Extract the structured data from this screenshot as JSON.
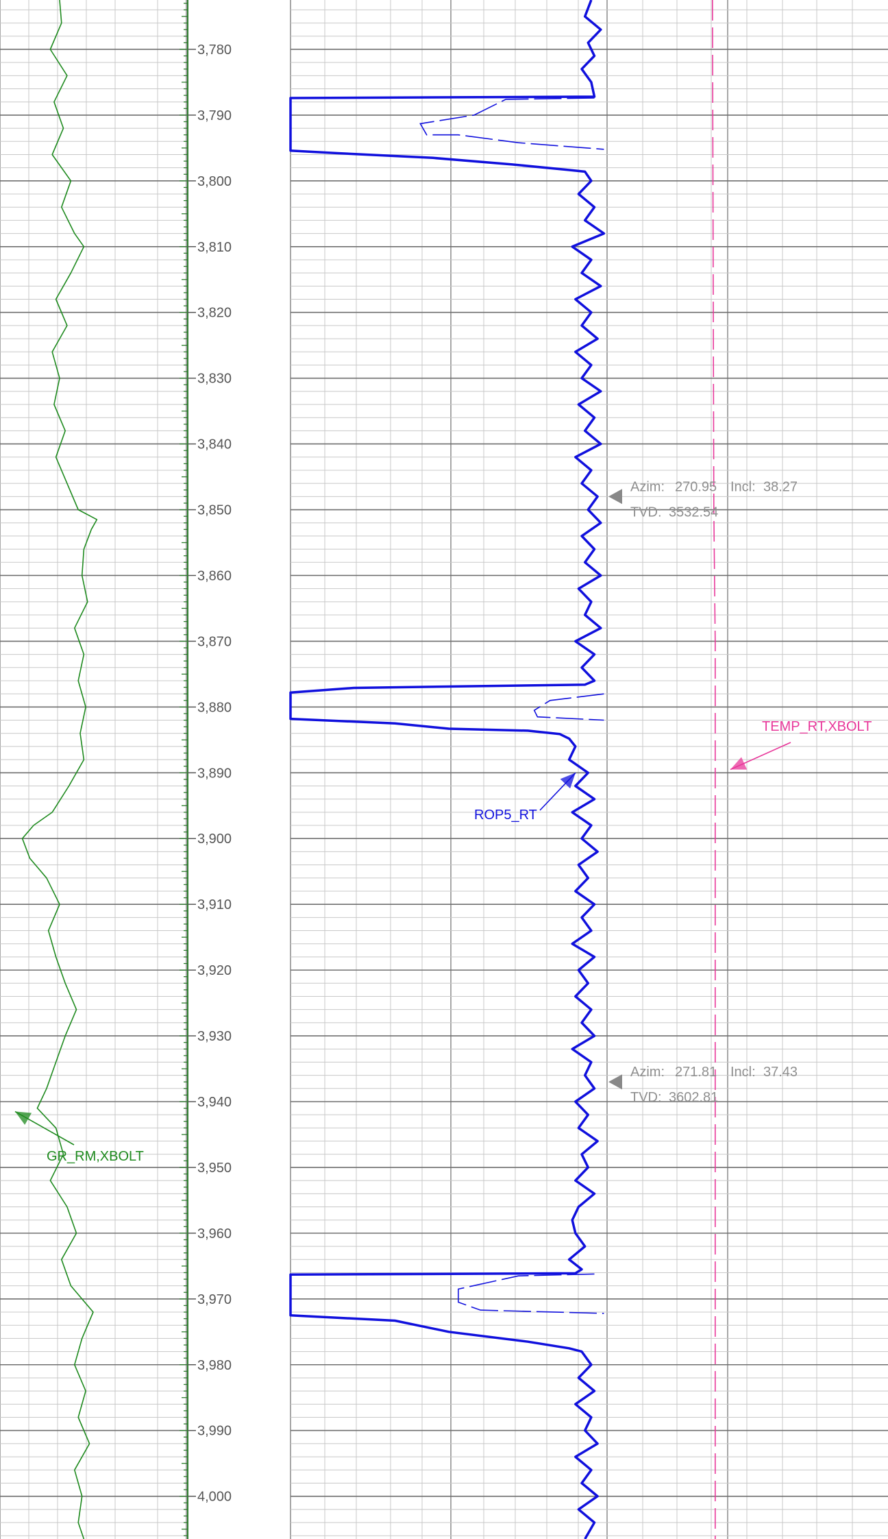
{
  "chart_data": {
    "type": "line",
    "depth_range": [
      3772.5,
      4006.5
    ],
    "depth_ticks": [
      3780,
      3790,
      3800,
      3810,
      3820,
      3830,
      3840,
      3850,
      3860,
      3870,
      3880,
      3890,
      3900,
      3910,
      3920,
      3930,
      3940,
      3950,
      3960,
      3970,
      3980,
      3990,
      4000
    ],
    "depth_tick_labels": [
      "3,780",
      "3,790",
      "3,800",
      "3,810",
      "3,820",
      "3,830",
      "3,840",
      "3,850",
      "3,860",
      "3,870",
      "3,880",
      "3,890",
      "3,900",
      "3,910",
      "3,920",
      "3,930",
      "3,940",
      "3,950",
      "3,960",
      "3,970",
      "3,980",
      "3,990",
      "4,000"
    ],
    "grid": true,
    "series": [
      {
        "name": "GR_RM,XBOLT",
        "track": "left",
        "color": "#1e8a1e",
        "label_depth": 3941.5,
        "depth": [
          3772.5,
          3776,
          3780,
          3784,
          3788,
          3792,
          3796,
          3800,
          3804,
          3808,
          3810,
          3814,
          3818,
          3822,
          3826,
          3830,
          3834,
          3838,
          3842,
          3846,
          3850,
          3851.5,
          3853,
          3856,
          3860,
          3864,
          3868,
          3872,
          3876,
          3880,
          3884,
          3888,
          3892,
          3896,
          3898,
          3900,
          3903,
          3906,
          3910,
          3914,
          3918,
          3922,
          3926,
          3930,
          3934,
          3938,
          3941,
          3944,
          3948,
          3952,
          3956,
          3960,
          3964,
          3968,
          3972,
          3976,
          3980,
          3984,
          3988,
          3992,
          3996,
          4000,
          4004,
          4006.5
        ],
        "value": [
          0.32,
          0.33,
          0.27,
          0.36,
          0.29,
          0.34,
          0.28,
          0.38,
          0.33,
          0.4,
          0.45,
          0.38,
          0.3,
          0.36,
          0.28,
          0.32,
          0.29,
          0.35,
          0.3,
          0.36,
          0.42,
          0.52,
          0.49,
          0.45,
          0.44,
          0.47,
          0.4,
          0.45,
          0.42,
          0.46,
          0.43,
          0.45,
          0.37,
          0.28,
          0.18,
          0.12,
          0.16,
          0.25,
          0.32,
          0.26,
          0.3,
          0.35,
          0.41,
          0.35,
          0.3,
          0.25,
          0.2,
          0.3,
          0.34,
          0.27,
          0.36,
          0.41,
          0.33,
          0.38,
          0.5,
          0.44,
          0.4,
          0.46,
          0.42,
          0.48,
          0.4,
          0.44,
          0.42,
          0.45
        ]
      },
      {
        "name": "ROP5_RT",
        "track": "middle",
        "color": "#1010dd",
        "label_depth": 3890,
        "depth": [
          3772.5,
          3775,
          3777,
          3779,
          3781,
          3783,
          3785,
          3787.2,
          3787.4,
          3795.4,
          3795.8,
          3796.5,
          3797.5,
          3798.3,
          3798.6,
          3800,
          3802,
          3804,
          3806,
          3808,
          3810,
          3812,
          3814,
          3816,
          3818,
          3820,
          3822,
          3824,
          3826,
          3828,
          3830,
          3832,
          3834,
          3836,
          3838,
          3840,
          3842,
          3844,
          3846,
          3848,
          3850,
          3852,
          3854,
          3856,
          3858,
          3860,
          3862,
          3864,
          3866,
          3868,
          3870,
          3872,
          3874,
          3876,
          3876.6,
          3877.1,
          3877.8,
          3881.8,
          3882.5,
          3883.3,
          3883.6,
          3884.1,
          3884.8,
          3886,
          3888,
          3890,
          3892,
          3894,
          3896,
          3898,
          3900,
          3902,
          3904,
          3906,
          3908,
          3910,
          3912,
          3914,
          3916,
          3918,
          3920,
          3922,
          3924,
          3926,
          3928,
          3930,
          3932,
          3934,
          3936,
          3938,
          3940,
          3942,
          3944,
          3946,
          3948,
          3950,
          3952,
          3954,
          3956,
          3958,
          3960,
          3962,
          3964,
          3965.5,
          3966.1,
          3966.3,
          3972.5,
          3973.3,
          3975,
          3976.5,
          3977.5,
          3978,
          3980,
          3982,
          3984,
          3986,
          3988,
          3990,
          3992,
          3994,
          3996,
          3998,
          4000,
          4002,
          4004,
          4006.5
        ],
        "value": [
          0.95,
          0.93,
          0.98,
          0.94,
          0.96,
          0.92,
          0.95,
          0.96,
          0.0,
          0.0,
          0.15,
          0.45,
          0.7,
          0.87,
          0.93,
          0.95,
          0.91,
          0.96,
          0.93,
          0.99,
          0.89,
          0.95,
          0.92,
          0.98,
          0.9,
          0.95,
          0.92,
          0.97,
          0.9,
          0.95,
          0.92,
          0.98,
          0.91,
          0.96,
          0.93,
          0.98,
          0.9,
          0.95,
          0.92,
          0.97,
          0.94,
          0.98,
          0.92,
          0.96,
          0.93,
          0.98,
          0.91,
          0.95,
          0.93,
          0.98,
          0.9,
          0.96,
          0.92,
          0.96,
          0.93,
          0.2,
          0.0,
          0.0,
          0.33,
          0.5,
          0.75,
          0.85,
          0.88,
          0.9,
          0.88,
          0.94,
          0.9,
          0.96,
          0.89,
          0.95,
          0.92,
          0.97,
          0.91,
          0.94,
          0.9,
          0.96,
          0.92,
          0.95,
          0.89,
          0.96,
          0.91,
          0.94,
          0.9,
          0.95,
          0.92,
          0.96,
          0.89,
          0.95,
          0.93,
          0.96,
          0.9,
          0.94,
          0.91,
          0.97,
          0.92,
          0.94,
          0.9,
          0.96,
          0.91,
          0.89,
          0.9,
          0.93,
          0.88,
          0.92,
          0.9,
          0.0,
          0.0,
          0.33,
          0.5,
          0.75,
          0.88,
          0.92,
          0.95,
          0.91,
          0.96,
          0.9,
          0.95,
          0.93,
          0.97,
          0.9,
          0.95,
          0.92,
          0.97,
          0.91,
          0.96,
          0.93,
          0.95
        ]
      },
      {
        "name": "TEMP_RT,XBOLT",
        "track": "right",
        "color": "#e8379a",
        "dashed": true,
        "label_depth": 3889.5,
        "depth": [
          3772.5,
          3850,
          3870,
          4006.5
        ],
        "value": [
          0.375,
          0.38,
          0.385,
          0.385
        ]
      }
    ],
    "annotations": [
      {
        "depth": 3848,
        "azim_label": "Azim:",
        "azim": "270.95",
        "incl_label": "Incl:",
        "incl": "38.27",
        "tvd_label": "TVD:",
        "tvd": "3532.54"
      },
      {
        "depth": 3937,
        "azim_label": "Azim:",
        "azim": "271.81",
        "incl_label": "Incl:",
        "incl": "37.43",
        "tvd_label": "TVD:",
        "tvd": "3602.81"
      }
    ]
  }
}
